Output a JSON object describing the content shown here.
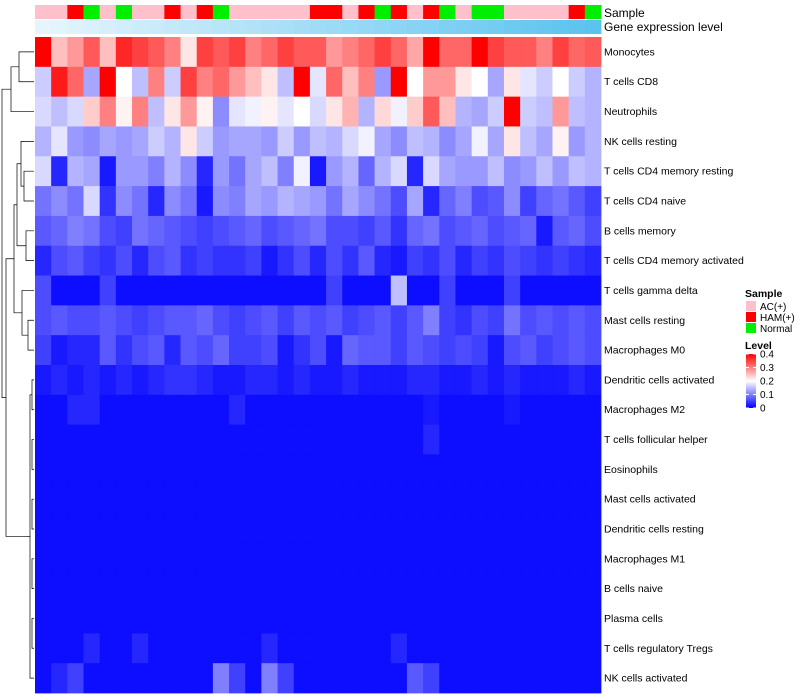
{
  "chart_data": {
    "type": "heatmap",
    "annotation_tracks": [
      {
        "label": "Sample"
      },
      {
        "label": "Gene expression level"
      }
    ],
    "sample_groups": [
      "AC(+)",
      "AC(+)",
      "HAM(+)",
      "Normal",
      "AC(+)",
      "Normal",
      "AC(+)",
      "AC(+)",
      "HAM(+)",
      "AC(+)",
      "HAM(+)",
      "Normal",
      "AC(+)",
      "AC(+)",
      "AC(+)",
      "AC(+)",
      "AC(+)",
      "HAM(+)",
      "HAM(+)",
      "AC(+)",
      "HAM(+)",
      "Normal",
      "HAM(+)",
      "AC(+)",
      "HAM(+)",
      "Normal",
      "AC(+)",
      "Normal",
      "Normal",
      "AC(+)",
      "AC(+)",
      "AC(+)",
      "AC(+)",
      "HAM(+)",
      "Normal"
    ],
    "sample_colors": {
      "AC(+)": "#ffc0cb",
      "HAM(+)": "#ff0000",
      "Normal": "#00ee00"
    },
    "expression_gradient": [
      "#e6f5fc",
      "#5bc3f0"
    ],
    "rows": [
      {
        "name": "Monocytes",
        "values": [
          0.4,
          0.25,
          0.28,
          0.33,
          0.25,
          0.37,
          0.35,
          0.33,
          0.3,
          0.22,
          0.35,
          0.33,
          0.35,
          0.3,
          0.32,
          0.35,
          0.33,
          0.33,
          0.28,
          0.3,
          0.32,
          0.35,
          0.32,
          0.27,
          0.42,
          0.32,
          0.32,
          0.4,
          0.35,
          0.33,
          0.33,
          0.3,
          0.35,
          0.32,
          0.33
        ]
      },
      {
        "name": "T cells CD8",
        "values": [
          0.16,
          0.38,
          0.32,
          0.13,
          0.4,
          0.2,
          0.15,
          0.3,
          0.16,
          0.35,
          0.3,
          0.32,
          0.28,
          0.25,
          0.22,
          0.15,
          0.4,
          0.18,
          0.32,
          0.25,
          0.3,
          0.12,
          0.4,
          0.2,
          0.28,
          0.28,
          0.22,
          0.2,
          0.13,
          0.22,
          0.18,
          0.16,
          0.2,
          0.16,
          0.14
        ]
      },
      {
        "name": "Neutrophils",
        "values": [
          0.17,
          0.15,
          0.17,
          0.24,
          0.3,
          0.21,
          0.3,
          0.15,
          0.22,
          0.28,
          0.21,
          0.11,
          0.18,
          0.19,
          0.21,
          0.18,
          0.2,
          0.17,
          0.22,
          0.26,
          0.14,
          0.23,
          0.19,
          0.24,
          0.33,
          0.25,
          0.14,
          0.13,
          0.16,
          0.4,
          0.16,
          0.15,
          0.28,
          0.15,
          0.14
        ]
      },
      {
        "name": "NK cells resting",
        "values": [
          0.14,
          0.18,
          0.12,
          0.11,
          0.13,
          0.12,
          0.13,
          0.16,
          0.14,
          0.22,
          0.16,
          0.12,
          0.13,
          0.13,
          0.12,
          0.16,
          0.12,
          0.15,
          0.14,
          0.17,
          0.19,
          0.13,
          0.11,
          0.15,
          0.14,
          0.11,
          0.13,
          0.19,
          0.13,
          0.22,
          0.15,
          0.13,
          0.21,
          0.12,
          0.14
        ]
      },
      {
        "name": "T cells CD4 memory resting",
        "values": [
          0.17,
          0.03,
          0.14,
          0.13,
          0.02,
          0.12,
          0.12,
          0.1,
          0.14,
          0.11,
          0.03,
          0.12,
          0.09,
          0.13,
          0.15,
          0.1,
          0.19,
          0.02,
          0.12,
          0.14,
          0.08,
          0.14,
          0.17,
          0.03,
          0.17,
          0.13,
          0.12,
          0.12,
          0.15,
          0.11,
          0.12,
          0.15,
          0.12,
          0.15,
          0.14
        ]
      },
      {
        "name": "T cells CD4 naive",
        "values": [
          0.09,
          0.11,
          0.09,
          0.17,
          0.04,
          0.11,
          0.09,
          0.03,
          0.11,
          0.09,
          0.02,
          0.11,
          0.1,
          0.13,
          0.12,
          0.14,
          0.13,
          0.12,
          0.09,
          0.13,
          0.11,
          0.09,
          0.06,
          0.13,
          0.03,
          0.08,
          0.1,
          0.06,
          0.07,
          0.11,
          0.05,
          0.08,
          0.09,
          0.07,
          0.05
        ]
      },
      {
        "name": "B cells memory",
        "values": [
          0.07,
          0.08,
          0.1,
          0.09,
          0.06,
          0.05,
          0.09,
          0.08,
          0.07,
          0.06,
          0.05,
          0.06,
          0.07,
          0.08,
          0.06,
          0.07,
          0.08,
          0.09,
          0.06,
          0.06,
          0.05,
          0.07,
          0.04,
          0.08,
          0.09,
          0.06,
          0.07,
          0.08,
          0.06,
          0.07,
          0.08,
          0.02,
          0.07,
          0.08,
          0.06
        ]
      },
      {
        "name": "T cells CD4 memory activated",
        "values": [
          0.03,
          0.06,
          0.07,
          0.05,
          0.04,
          0.06,
          0.03,
          0.06,
          0.07,
          0.04,
          0.05,
          0.04,
          0.04,
          0.05,
          0.02,
          0.04,
          0.06,
          0.03,
          0.06,
          0.04,
          0.07,
          0.03,
          0.02,
          0.05,
          0.04,
          0.06,
          0.03,
          0.05,
          0.04,
          0.06,
          0.05,
          0.04,
          0.05,
          0.04,
          0.03
        ]
      },
      {
        "name": "T cells gamma delta",
        "values": [
          0.06,
          0.01,
          0.01,
          0.01,
          0.05,
          0.01,
          0.01,
          0.01,
          0.01,
          0.01,
          0.01,
          0.01,
          0.01,
          0.01,
          0.01,
          0.01,
          0.01,
          0.01,
          0.05,
          0.01,
          0.01,
          0.01,
          0.15,
          0.01,
          0.01,
          0.05,
          0.01,
          0.01,
          0.01,
          0.05,
          0.01,
          0.01,
          0.01,
          0.01,
          0.01
        ]
      },
      {
        "name": "Mast cells resting",
        "values": [
          0.06,
          0.07,
          0.06,
          0.06,
          0.07,
          0.06,
          0.05,
          0.06,
          0.07,
          0.07,
          0.08,
          0.06,
          0.05,
          0.06,
          0.07,
          0.05,
          0.07,
          0.06,
          0.07,
          0.05,
          0.06,
          0.07,
          0.05,
          0.07,
          0.1,
          0.05,
          0.04,
          0.06,
          0.05,
          0.09,
          0.06,
          0.07,
          0.06,
          0.07,
          0.06
        ]
      },
      {
        "name": "Macrophages M0",
        "values": [
          0.05,
          0.02,
          0.03,
          0.03,
          0.07,
          0.04,
          0.06,
          0.07,
          0.03,
          0.07,
          0.06,
          0.08,
          0.05,
          0.05,
          0.06,
          0.02,
          0.04,
          0.06,
          0.02,
          0.08,
          0.07,
          0.07,
          0.05,
          0.07,
          0.06,
          0.05,
          0.06,
          0.05,
          0.02,
          0.06,
          0.07,
          0.05,
          0.06,
          0.07,
          0.06
        ]
      },
      {
        "name": "Dendritic cells activated",
        "values": [
          0.02,
          0.03,
          0.02,
          0.03,
          0.02,
          0.03,
          0.02,
          0.03,
          0.04,
          0.04,
          0.03,
          0.02,
          0.02,
          0.03,
          0.03,
          0.02,
          0.03,
          0.02,
          0.02,
          0.03,
          0.02,
          0.02,
          0.02,
          0.03,
          0.03,
          0.02,
          0.02,
          0.03,
          0.02,
          0.03,
          0.02,
          0.02,
          0.02,
          0.03,
          0.02
        ]
      },
      {
        "name": "Macrophages M2",
        "values": [
          0.01,
          0.01,
          0.03,
          0.03,
          0.01,
          0.01,
          0.01,
          0.01,
          0.01,
          0.01,
          0.01,
          0.01,
          0.03,
          0.01,
          0.01,
          0.01,
          0.01,
          0.01,
          0.01,
          0.01,
          0.01,
          0.01,
          0.01,
          0.01,
          0.02,
          0.01,
          0.01,
          0.01,
          0.01,
          0.02,
          0.01,
          0.01,
          0.01,
          0.01,
          0.01
        ]
      },
      {
        "name": "T cells follicular helper",
        "values": [
          0.01,
          0.01,
          0.01,
          0.01,
          0.01,
          0.01,
          0.01,
          0.01,
          0.01,
          0.01,
          0.01,
          0.01,
          0.01,
          0.01,
          0.01,
          0.01,
          0.01,
          0.01,
          0.01,
          0.01,
          0.01,
          0.01,
          0.01,
          0.01,
          0.03,
          0.01,
          0.01,
          0.01,
          0.01,
          0.01,
          0.01,
          0.01,
          0.01,
          0.01,
          0.01
        ]
      },
      {
        "name": "Eosinophils",
        "values": [
          0.01,
          0.01,
          0.01,
          0.01,
          0.01,
          0.01,
          0.01,
          0.01,
          0.01,
          0.01,
          0.01,
          0.01,
          0.01,
          0.01,
          0.01,
          0.01,
          0.01,
          0.01,
          0.01,
          0.01,
          0.01,
          0.01,
          0.01,
          0.01,
          0.01,
          0.01,
          0.01,
          0.01,
          0.01,
          0.01,
          0.01,
          0.01,
          0.01,
          0.01,
          0.01
        ]
      },
      {
        "name": "Mast cells activated",
        "values": [
          0.01,
          0.01,
          0.01,
          0.01,
          0.01,
          0.01,
          0.01,
          0.01,
          0.01,
          0.01,
          0.01,
          0.01,
          0.01,
          0.01,
          0.01,
          0.01,
          0.01,
          0.01,
          0.01,
          0.01,
          0.01,
          0.01,
          0.01,
          0.01,
          0.01,
          0.01,
          0.01,
          0.01,
          0.01,
          0.01,
          0.01,
          0.01,
          0.01,
          0.01,
          0.01
        ]
      },
      {
        "name": "Dendritic cells resting",
        "values": [
          0.01,
          0.01,
          0.01,
          0.01,
          0.01,
          0.01,
          0.01,
          0.01,
          0.01,
          0.01,
          0.01,
          0.01,
          0.01,
          0.01,
          0.01,
          0.01,
          0.01,
          0.01,
          0.01,
          0.01,
          0.01,
          0.01,
          0.01,
          0.01,
          0.01,
          0.01,
          0.01,
          0.01,
          0.01,
          0.01,
          0.01,
          0.01,
          0.01,
          0.01,
          0.01
        ]
      },
      {
        "name": "Macrophages M1",
        "values": [
          0.01,
          0.01,
          0.01,
          0.01,
          0.01,
          0.01,
          0.01,
          0.01,
          0.01,
          0.01,
          0.01,
          0.01,
          0.01,
          0.01,
          0.01,
          0.01,
          0.01,
          0.01,
          0.01,
          0.01,
          0.01,
          0.01,
          0.01,
          0.01,
          0.01,
          0.01,
          0.01,
          0.01,
          0.01,
          0.01,
          0.01,
          0.01,
          0.01,
          0.01,
          0.01
        ]
      },
      {
        "name": "B cells naive",
        "values": [
          0.01,
          0.01,
          0.01,
          0.01,
          0.01,
          0.01,
          0.01,
          0.01,
          0.01,
          0.01,
          0.01,
          0.01,
          0.01,
          0.01,
          0.01,
          0.01,
          0.01,
          0.01,
          0.01,
          0.01,
          0.01,
          0.01,
          0.01,
          0.01,
          0.01,
          0.01,
          0.01,
          0.01,
          0.01,
          0.01,
          0.01,
          0.01,
          0.01,
          0.01,
          0.01
        ]
      },
      {
        "name": "Plasma cells",
        "values": [
          0.01,
          0.01,
          0.01,
          0.01,
          0.01,
          0.01,
          0.01,
          0.01,
          0.01,
          0.01,
          0.01,
          0.01,
          0.01,
          0.01,
          0.01,
          0.01,
          0.01,
          0.01,
          0.01,
          0.01,
          0.01,
          0.01,
          0.01,
          0.01,
          0.01,
          0.01,
          0.01,
          0.01,
          0.01,
          0.01,
          0.01,
          0.01,
          0.01,
          0.01,
          0.01
        ]
      },
      {
        "name": "T cells regulatory  Tregs",
        "values": [
          0.01,
          0.01,
          0.01,
          0.03,
          0.01,
          0.01,
          0.03,
          0.01,
          0.01,
          0.01,
          0.01,
          0.01,
          0.01,
          0.01,
          0.03,
          0.01,
          0.01,
          0.01,
          0.01,
          0.01,
          0.01,
          0.01,
          0.03,
          0.01,
          0.01,
          0.01,
          0.01,
          0.01,
          0.01,
          0.01,
          0.01,
          0.01,
          0.01,
          0.01,
          0.01
        ]
      },
      {
        "name": "NK cells activated",
        "values": [
          0.01,
          0.03,
          0.05,
          0.01,
          0.01,
          0.01,
          0.01,
          0.01,
          0.01,
          0.01,
          0.01,
          0.1,
          0.05,
          0.01,
          0.1,
          0.05,
          0.01,
          0.01,
          0.01,
          0.01,
          0.01,
          0.01,
          0.01,
          0.07,
          0.05,
          0.01,
          0.01,
          0.01,
          0.01,
          0.01,
          0.01,
          0.01,
          0.01,
          0.01,
          0.01
        ]
      }
    ],
    "color_scale": {
      "min": 0,
      "mid": 0.2,
      "max": 0.4,
      "low": "#0000ff",
      "midColor": "#ffffff",
      "high": "#ff0000"
    },
    "legend": {
      "sample_title": "Sample",
      "sample_items": [
        "AC(+)",
        "HAM(+)",
        "Normal"
      ],
      "level_title": "Level",
      "level_ticks": [
        0.4,
        0.3,
        0.2,
        0.1,
        0
      ],
      "placement": "right"
    },
    "row_dendrogram": "left"
  }
}
